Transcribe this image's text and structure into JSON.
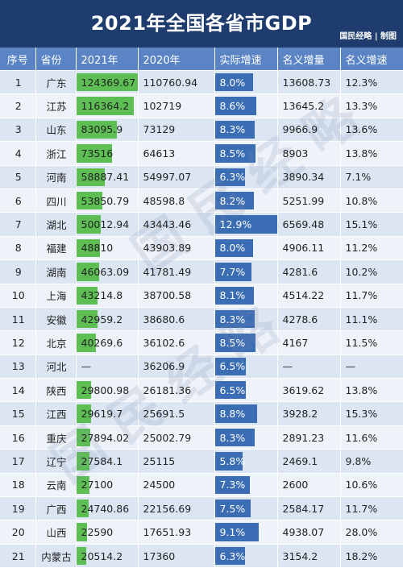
{
  "title": "2021年全国各省市GDP",
  "credit": "国民经略 | 制图",
  "headers": [
    "序号",
    "省份",
    "2021年",
    "2020年",
    "实际增速",
    "名义增量",
    "名义增速"
  ],
  "colors": {
    "header_bg": "#1e3d6e",
    "column_header_bg": "#5b84c4",
    "gdp_bar": "#5dbf53",
    "growth_bar": "#3b6db5"
  },
  "rows": [
    {
      "rank": "1",
      "province": "广东",
      "gdp2021": "124369.67",
      "gdp2020": "110760.94",
      "real_growth": "8.0%",
      "nominal_increase": "13608.73",
      "nominal_growth": "12.3%",
      "gdp_value": 124369.67,
      "growth_value": 8.0
    },
    {
      "rank": "2",
      "province": "江苏",
      "gdp2021": "116364.2",
      "gdp2020": "102719",
      "real_growth": "8.6%",
      "nominal_increase": "13645.2",
      "nominal_growth": "13.3%",
      "gdp_value": 116364.2,
      "growth_value": 8.6
    },
    {
      "rank": "3",
      "province": "山东",
      "gdp2021": "83095.9",
      "gdp2020": "73129",
      "real_growth": "8.3%",
      "nominal_increase": "9966.9",
      "nominal_growth": "13.6%",
      "gdp_value": 83095.9,
      "growth_value": 8.3
    },
    {
      "rank": "4",
      "province": "浙江",
      "gdp2021": "73516",
      "gdp2020": "64613",
      "real_growth": "8.5%",
      "nominal_increase": "8903",
      "nominal_growth": "13.8%",
      "gdp_value": 73516,
      "growth_value": 8.5
    },
    {
      "rank": "5",
      "province": "河南",
      "gdp2021": "58887.41",
      "gdp2020": "54997.07",
      "real_growth": "6.3%",
      "nominal_increase": "3890.34",
      "nominal_growth": "7.1%",
      "gdp_value": 58887.41,
      "growth_value": 6.3
    },
    {
      "rank": "6",
      "province": "四川",
      "gdp2021": "53850.79",
      "gdp2020": "48598.8",
      "real_growth": "8.2%",
      "nominal_increase": "5251.99",
      "nominal_growth": "10.8%",
      "gdp_value": 53850.79,
      "growth_value": 8.2
    },
    {
      "rank": "7",
      "province": "湖北",
      "gdp2021": "50012.94",
      "gdp2020": "43443.46",
      "real_growth": "12.9%",
      "nominal_increase": "6569.48",
      "nominal_growth": "15.1%",
      "gdp_value": 50012.94,
      "growth_value": 12.9
    },
    {
      "rank": "8",
      "province": "福建",
      "gdp2021": "48810",
      "gdp2020": "43903.89",
      "real_growth": "8.0%",
      "nominal_increase": "4906.11",
      "nominal_growth": "11.2%",
      "gdp_value": 48810,
      "growth_value": 8.0
    },
    {
      "rank": "9",
      "province": "湖南",
      "gdp2021": "46063.09",
      "gdp2020": "41781.49",
      "real_growth": "7.7%",
      "nominal_increase": "4281.6",
      "nominal_growth": "10.2%",
      "gdp_value": 46063.09,
      "growth_value": 7.7
    },
    {
      "rank": "10",
      "province": "上海",
      "gdp2021": "43214.8",
      "gdp2020": "38700.58",
      "real_growth": "8.1%",
      "nominal_increase": "4514.22",
      "nominal_growth": "11.7%",
      "gdp_value": 43214.8,
      "growth_value": 8.1
    },
    {
      "rank": "11",
      "province": "安徽",
      "gdp2021": "42959.2",
      "gdp2020": "38680.6",
      "real_growth": "8.3%",
      "nominal_increase": "4278.6",
      "nominal_growth": "11.1%",
      "gdp_value": 42959.2,
      "growth_value": 8.3
    },
    {
      "rank": "12",
      "province": "北京",
      "gdp2021": "40269.6",
      "gdp2020": "36102.6",
      "real_growth": "8.5%",
      "nominal_increase": "4167",
      "nominal_growth": "11.5%",
      "gdp_value": 40269.6,
      "growth_value": 8.5
    },
    {
      "rank": "13",
      "province": "河北",
      "gdp2021": "—",
      "gdp2020": "36206.9",
      "real_growth": "6.5%",
      "nominal_increase": "—",
      "nominal_growth": "—",
      "gdp_value": 0,
      "growth_value": 6.5
    },
    {
      "rank": "14",
      "province": "陕西",
      "gdp2021": "29800.98",
      "gdp2020": "26181.36",
      "real_growth": "6.5%",
      "nominal_increase": "3619.62",
      "nominal_growth": "13.8%",
      "gdp_value": 29800.98,
      "growth_value": 6.5
    },
    {
      "rank": "15",
      "province": "江西",
      "gdp2021": "29619.7",
      "gdp2020": "25691.5",
      "real_growth": "8.8%",
      "nominal_increase": "3928.2",
      "nominal_growth": "15.3%",
      "gdp_value": 29619.7,
      "growth_value": 8.8
    },
    {
      "rank": "16",
      "province": "重庆",
      "gdp2021": "27894.02",
      "gdp2020": "25002.79",
      "real_growth": "8.3%",
      "nominal_increase": "2891.23",
      "nominal_growth": "11.6%",
      "gdp_value": 27894.02,
      "growth_value": 8.3
    },
    {
      "rank": "17",
      "province": "辽宁",
      "gdp2021": "27584.1",
      "gdp2020": "25115",
      "real_growth": "5.8%",
      "nominal_increase": "2469.1",
      "nominal_growth": "9.8%",
      "gdp_value": 27584.1,
      "growth_value": 5.8
    },
    {
      "rank": "18",
      "province": "云南",
      "gdp2021": "27100",
      "gdp2020": "24500",
      "real_growth": "7.3%",
      "nominal_increase": "2600",
      "nominal_growth": "10.6%",
      "gdp_value": 27100,
      "growth_value": 7.3
    },
    {
      "rank": "19",
      "province": "广西",
      "gdp2021": "24740.86",
      "gdp2020": "22156.69",
      "real_growth": "7.5%",
      "nominal_increase": "2584.17",
      "nominal_growth": "11.7%",
      "gdp_value": 24740.86,
      "growth_value": 7.5
    },
    {
      "rank": "20",
      "province": "山西",
      "gdp2021": "22590",
      "gdp2020": "17651.93",
      "real_growth": "9.1%",
      "nominal_increase": "4938.07",
      "nominal_growth": "28.0%",
      "gdp_value": 22590,
      "growth_value": 9.1
    },
    {
      "rank": "21",
      "province": "内蒙古",
      "gdp2021": "20514.2",
      "gdp2020": "17360",
      "real_growth": "6.3%",
      "nominal_increase": "3154.2",
      "nominal_growth": "18.2%",
      "gdp_value": 20514.2,
      "growth_value": 6.3
    }
  ]
}
